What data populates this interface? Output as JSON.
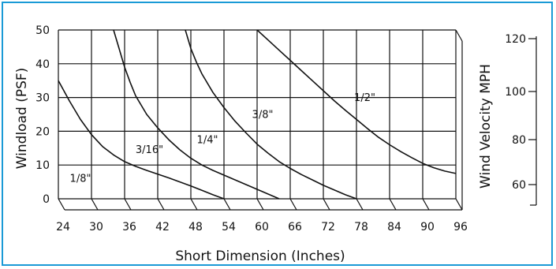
{
  "chart_data": {
    "type": "line",
    "title": "",
    "xlabel": "Short Dimension (Inches)",
    "ylabel": "Windload (PSF)",
    "y2label": "Wind Velocity MPH",
    "xlim": [
      24,
      96
    ],
    "ylim": [
      0,
      50
    ],
    "x_ticks": [
      "24",
      "30",
      "36",
      "42",
      "48",
      "54",
      "60",
      "66",
      "72",
      "78",
      "84",
      "90",
      "96"
    ],
    "y_ticks": [
      "0",
      "10",
      "20",
      "30",
      "40",
      "50"
    ],
    "y2_ticks": [
      "60",
      "80",
      "100",
      "120"
    ],
    "grid": true,
    "series": [
      {
        "name": "1/8\"",
        "x": [
          24,
          26,
          28,
          30,
          32,
          34,
          36,
          38,
          40,
          42,
          44,
          46,
          48,
          50,
          52,
          54
        ],
        "y": [
          35,
          29,
          23.5,
          19,
          15.5,
          13,
          11,
          9.6,
          8.4,
          7.3,
          6.2,
          5,
          3.8,
          2.5,
          1.2,
          0
        ]
      },
      {
        "name": "3/16\"",
        "x": [
          34,
          35,
          36,
          37,
          38,
          40,
          42,
          44,
          46,
          48,
          50,
          52,
          54,
          56,
          58,
          60,
          62,
          64
        ],
        "y": [
          50,
          44.5,
          39,
          34.5,
          30.5,
          25,
          21,
          17.5,
          14.5,
          12,
          10,
          8.4,
          7,
          5.6,
          4.2,
          2.8,
          1.4,
          0
        ]
      },
      {
        "name": "1/4\"",
        "x": [
          47,
          48,
          49,
          50,
          52,
          54,
          56,
          58,
          60,
          62,
          64,
          66,
          68,
          70,
          72,
          74,
          76,
          78
        ],
        "y": [
          50,
          44.5,
          40.5,
          37,
          31.5,
          27,
          23,
          19.5,
          16.2,
          13.5,
          11,
          9,
          7.2,
          5.6,
          4,
          2.6,
          1.2,
          0
        ]
      },
      {
        "name": "3/8\"",
        "x": [
          60,
          62,
          64,
          66,
          68,
          70,
          72,
          74,
          76,
          78,
          80,
          82,
          84,
          86,
          88,
          90,
          92,
          94,
          96
        ],
        "y": [
          50,
          47,
          44,
          41,
          38,
          35,
          32,
          29,
          26.2,
          23.5,
          20.8,
          18.2,
          16,
          14,
          12.2,
          10.5,
          9.2,
          8.2,
          7.5
        ]
      }
    ],
    "curve_labels": [
      {
        "text": "1/8\"",
        "x": 28,
        "y": 5
      },
      {
        "text": "3/16\"",
        "x": 40.5,
        "y": 13.5
      },
      {
        "text": "1/4\"",
        "x": 51,
        "y": 16.5
      },
      {
        "text": "3/8\"",
        "x": 61,
        "y": 24
      },
      {
        "text": "1/2\"",
        "x": 79.5,
        "y": 29
      }
    ]
  }
}
